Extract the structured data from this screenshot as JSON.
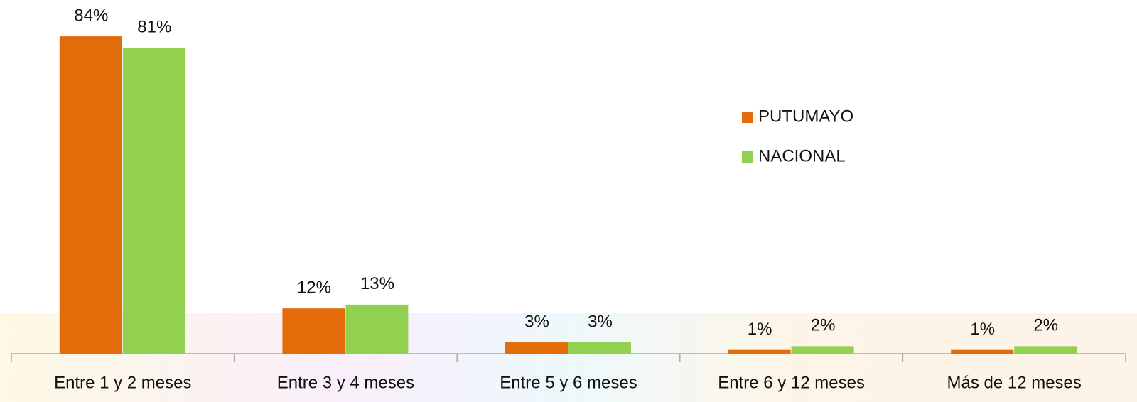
{
  "chart_data": {
    "type": "bar",
    "categories": [
      "Entre 1 y 2 meses",
      "Entre 3 y 4 meses",
      "Entre 5 y 6 meses",
      "Entre 6 y 12 meses",
      "Más de 12 meses"
    ],
    "series": [
      {
        "name": "PUTUMAYO",
        "color": "#e36c0a",
        "values": [
          84,
          12,
          3,
          1,
          1
        ],
        "value_labels": [
          "84%",
          "12%",
          "3%",
          "1%",
          "1%"
        ]
      },
      {
        "name": "NACIONAL",
        "color": "#92d050",
        "values": [
          81,
          13,
          3,
          2,
          2
        ],
        "value_labels": [
          "81%",
          "13%",
          "3%",
          "2%",
          "2%"
        ]
      }
    ],
    "legend": "right"
  }
}
